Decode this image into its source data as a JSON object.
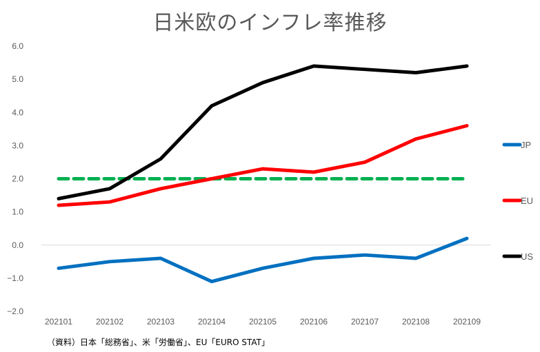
{
  "chart_data": {
    "type": "line",
    "title": "日米欧のインフレ率推移",
    "xlabel": "",
    "ylabel": "",
    "categories": [
      "202101",
      "202102",
      "202103",
      "202104",
      "202105",
      "202106",
      "202107",
      "202108",
      "202109"
    ],
    "ylim": [
      -2.0,
      6.0
    ],
    "yticks": [
      "6.0",
      "5.0",
      "4.0",
      "3.0",
      "2.0",
      "1.0",
      "0.0",
      "-1.0",
      "-2.0"
    ],
    "ytick_values": [
      6,
      5,
      4,
      3,
      2,
      1,
      0,
      -1,
      -2
    ],
    "grid": false,
    "zero_line": true,
    "legend_position": "right",
    "series": [
      {
        "name": "JP",
        "color": "#0070C0",
        "values": [
          -0.7,
          -0.5,
          -0.4,
          -1.1,
          -0.7,
          -0.4,
          -0.3,
          -0.4,
          0.2
        ]
      },
      {
        "name": "EU",
        "color": "#FF0000",
        "values": [
          1.2,
          1.3,
          1.7,
          2.0,
          2.3,
          2.2,
          2.5,
          3.2,
          3.6
        ]
      },
      {
        "name": "US",
        "color": "#000000",
        "values": [
          1.4,
          1.7,
          2.6,
          4.2,
          4.9,
          5.4,
          5.3,
          5.2,
          5.4
        ]
      }
    ],
    "reference_line": {
      "value": 2.0,
      "color": "#00B050",
      "style": "dashed"
    }
  },
  "source_note": "（資料）日本「総務省」、米「労働省」、EU「EURO STAT」"
}
